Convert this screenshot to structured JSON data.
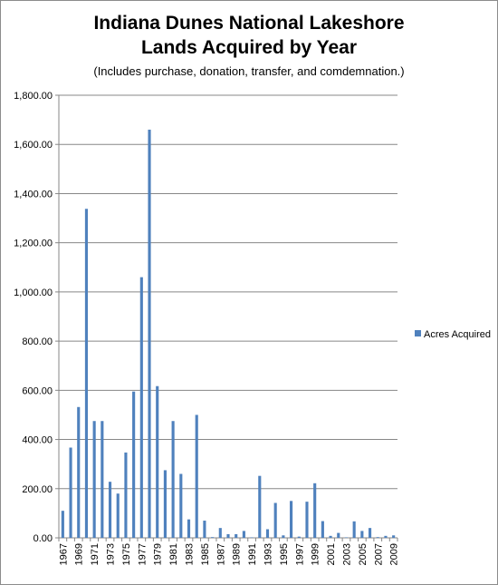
{
  "chart_data": {
    "type": "bar",
    "title_line1": "Indiana Dunes National Lakeshore",
    "title_line2": "Lands Acquired by Year",
    "subtitle": "(Includes purchase, donation, transfer, and comdemnation.)",
    "xlabel": "",
    "ylabel": "",
    "ylim": [
      0,
      1800
    ],
    "yticks": [
      "0.00",
      "200.00",
      "400.00",
      "600.00",
      "800.00",
      "1,000.00",
      "1,200.00",
      "1,400.00",
      "1,600.00",
      "1,800.00"
    ],
    "categories": [
      "1967",
      "1968",
      "1969",
      "1970",
      "1971",
      "1972",
      "1973",
      "1974",
      "1975",
      "1976",
      "1977",
      "1978",
      "1979",
      "1980",
      "1981",
      "1982",
      "1983",
      "1984",
      "1985",
      "1986",
      "1987",
      "1988",
      "1989",
      "1990",
      "1991",
      "1992",
      "1993",
      "1994",
      "1995",
      "1996",
      "1997",
      "1998",
      "1999",
      "2000",
      "2001",
      "2002",
      "2003",
      "2004",
      "2005",
      "2006",
      "2007",
      "2008",
      "2009"
    ],
    "series": [
      {
        "name": "Acres Acquired",
        "color": "#4f81bd",
        "values": [
          110,
          367,
          532,
          1338,
          475,
          475,
          228,
          180,
          347,
          595,
          1060,
          1660,
          617,
          275,
          475,
          260,
          75,
          500,
          70,
          3,
          40,
          15,
          15,
          28,
          2,
          252,
          35,
          142,
          10,
          150,
          5,
          147,
          222,
          68,
          8,
          20,
          2,
          67,
          28,
          40,
          3,
          8,
          10
        ]
      }
    ],
    "grid": true,
    "legend": "right"
  }
}
